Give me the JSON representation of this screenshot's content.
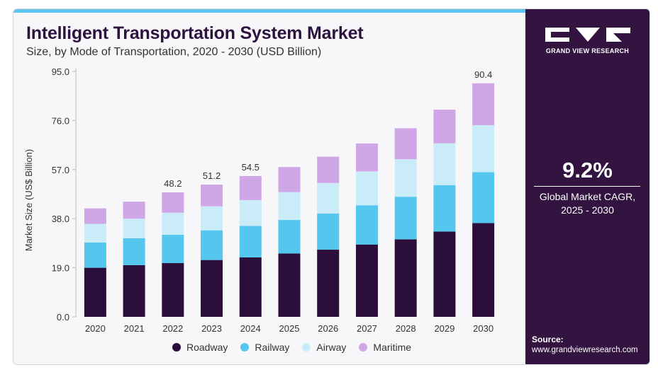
{
  "header": {
    "title": "Intelligent Transportation System Market",
    "subtitle": "Size, by Mode of Transportation, 2020 - 2030 (USD Billion)"
  },
  "brand": {
    "name": "GRAND VIEW RESEARCH",
    "logo_icon": "grand-view-research-logo"
  },
  "stat": {
    "value": "9.2%",
    "label_line1": "Global Market CAGR,",
    "label_line2": "2025 - 2030"
  },
  "source": {
    "title": "Source:",
    "url": "www.grandviewresearch.com"
  },
  "colors": {
    "accent": "#5ec4ee",
    "panel": "#33133f",
    "title": "#2d1240"
  },
  "chart_data": {
    "type": "bar",
    "stacked": true,
    "categories": [
      "2020",
      "2021",
      "2022",
      "2023",
      "2024",
      "2025",
      "2026",
      "2027",
      "2028",
      "2029",
      "2030"
    ],
    "series": [
      {
        "name": "Roadway",
        "color": "#2b0f3a",
        "values": [
          19.0,
          20.0,
          20.8,
          22.0,
          23.0,
          24.5,
          26.0,
          28.0,
          30.0,
          33.0,
          36.3
        ]
      },
      {
        "name": "Railway",
        "color": "#55c6ee",
        "values": [
          9.8,
          10.4,
          11.0,
          11.5,
          12.2,
          13.0,
          14.0,
          15.2,
          16.5,
          18.0,
          19.7
        ]
      },
      {
        "name": "Airway",
        "color": "#c9ecf8",
        "values": [
          7.2,
          7.6,
          8.5,
          9.3,
          10.0,
          10.8,
          11.8,
          13.1,
          14.5,
          16.2,
          18.2
        ]
      },
      {
        "name": "Maritime",
        "color": "#cfa6e6",
        "values": [
          6.0,
          6.6,
          7.9,
          8.4,
          9.3,
          9.7,
          10.2,
          10.8,
          12.0,
          13.0,
          16.2
        ]
      }
    ],
    "data_labels": [
      {
        "category": "2022",
        "text": "48.2"
      },
      {
        "category": "2023",
        "text": "51.2"
      },
      {
        "category": "2024",
        "text": "54.5"
      },
      {
        "category": "2030",
        "text": "90.4"
      }
    ],
    "yticks": [
      "0.0",
      "19.0",
      "38.0",
      "57.0",
      "76.0",
      "95.0"
    ],
    "ylim": [
      0,
      95
    ],
    "ylabel": "Market Size (US$ Billion)",
    "xlabel": "",
    "legend_position": "bottom"
  }
}
